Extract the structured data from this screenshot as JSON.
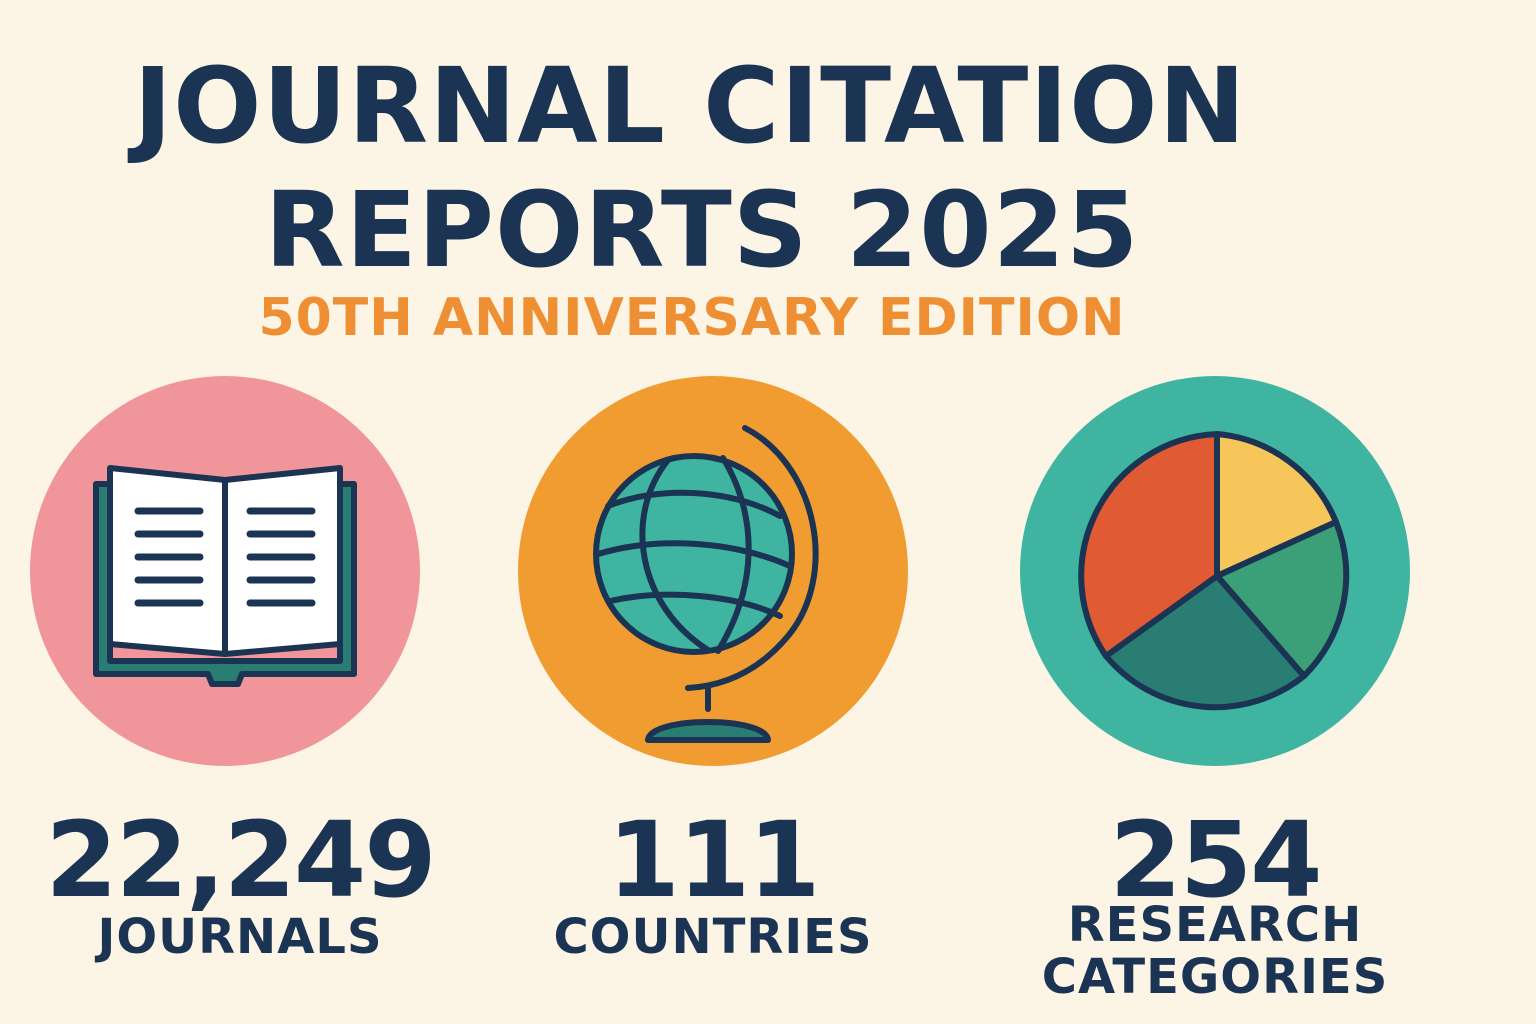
{
  "header": {
    "title_line1": "JOURNAL CITATION",
    "title_line2": "REPORTS 2025",
    "subtitle": "50TH ANNIVERSARY EDITION"
  },
  "stats": [
    {
      "number": "22,249",
      "label": "JOURNALS",
      "icon": "open-book-icon",
      "color": "#f0959a"
    },
    {
      "number": "111",
      "label": "COUNTRIES",
      "icon": "globe-icon",
      "color": "#f09c30"
    },
    {
      "number": "254",
      "label_line1": "RESEARCH",
      "label_line2": "CATEGORIES",
      "icon": "pie-chart-icon",
      "color": "#3fb5a1"
    }
  ],
  "colors": {
    "background": "#fcf5e6",
    "navy": "#1b3453",
    "orange_text": "#ef8f33"
  }
}
